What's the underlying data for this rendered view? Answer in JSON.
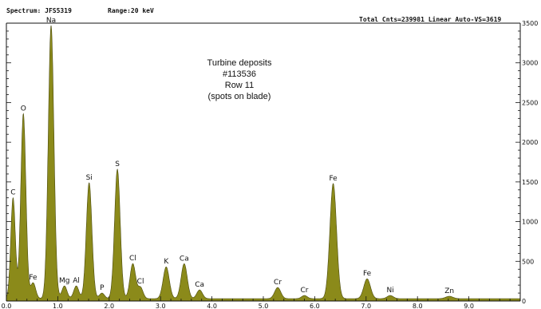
{
  "header": {
    "spectrum": "Spectrum: JFS5319",
    "range": "Range:20 keV",
    "total": "Total Cnts=239981 Linear Auto-VS=3619"
  },
  "chart_data": {
    "type": "area",
    "title": "",
    "xlabel": "",
    "ylabel": "",
    "xlim": [
      0,
      100
    ],
    "ylim": [
      0,
      3500
    ],
    "yticks": [
      0,
      500,
      1000,
      1500,
      2000,
      2500,
      3000,
      3500
    ],
    "yticklabels": [
      "0",
      "500",
      "1000",
      "1500",
      "2000",
      "2500",
      "3000",
      "3500"
    ],
    "xticks": [
      0,
      10,
      20,
      30,
      40,
      50,
      60,
      70,
      80,
      90
    ],
    "xticklabels": [
      "0.0",
      "1.0",
      "2.0",
      "3.0",
      "4.0",
      "5.0",
      "6.0",
      "7.0",
      "8.0",
      "9.0"
    ],
    "fill_color": "#8b8a1a",
    "edge_color": "#4a4a10",
    "background": 30,
    "annotation": [
      "Turbine deposits",
      "#113536",
      "Row 11",
      "(spots on blade)"
    ],
    "peaks": [
      {
        "label": "C",
        "x": 1.3,
        "y": 1270,
        "w": 0.45
      },
      {
        "label": "O",
        "x": 3.3,
        "y": 2330,
        "w": 0.5
      },
      {
        "label": "Fe",
        "x": 5.2,
        "y": 200,
        "w": 0.5
      },
      {
        "label": "Na",
        "x": 8.7,
        "y": 3440,
        "w": 0.55
      },
      {
        "label": "Mg",
        "x": 11.3,
        "y": 160,
        "w": 0.5
      },
      {
        "label": "Al",
        "x": 13.6,
        "y": 160,
        "w": 0.5
      },
      {
        "label": "Si",
        "x": 16.1,
        "y": 1460,
        "w": 0.55
      },
      {
        "label": "P",
        "x": 18.6,
        "y": 70,
        "w": 0.5
      },
      {
        "label": "S",
        "x": 21.6,
        "y": 1630,
        "w": 0.55
      },
      {
        "label": "Cl",
        "x": 24.6,
        "y": 440,
        "w": 0.55
      },
      {
        "label": "Cl",
        "x": 26.1,
        "y": 140,
        "w": 0.5
      },
      {
        "label": "K",
        "x": 31.1,
        "y": 400,
        "w": 0.6
      },
      {
        "label": "Ca",
        "x": 34.6,
        "y": 440,
        "w": 0.6
      },
      {
        "label": "Ca",
        "x": 37.6,
        "y": 110,
        "w": 0.55
      },
      {
        "label": "Cr",
        "x": 52.8,
        "y": 140,
        "w": 0.6
      },
      {
        "label": "Cr",
        "x": 58.0,
        "y": 40,
        "w": 0.55
      },
      {
        "label": "Fe",
        "x": 63.6,
        "y": 1450,
        "w": 0.65
      },
      {
        "label": "Fe",
        "x": 70.2,
        "y": 250,
        "w": 0.65
      },
      {
        "label": "Ni",
        "x": 74.7,
        "y": 40,
        "w": 0.6
      },
      {
        "label": "Zn",
        "x": 86.2,
        "y": 30,
        "w": 0.7
      }
    ]
  }
}
